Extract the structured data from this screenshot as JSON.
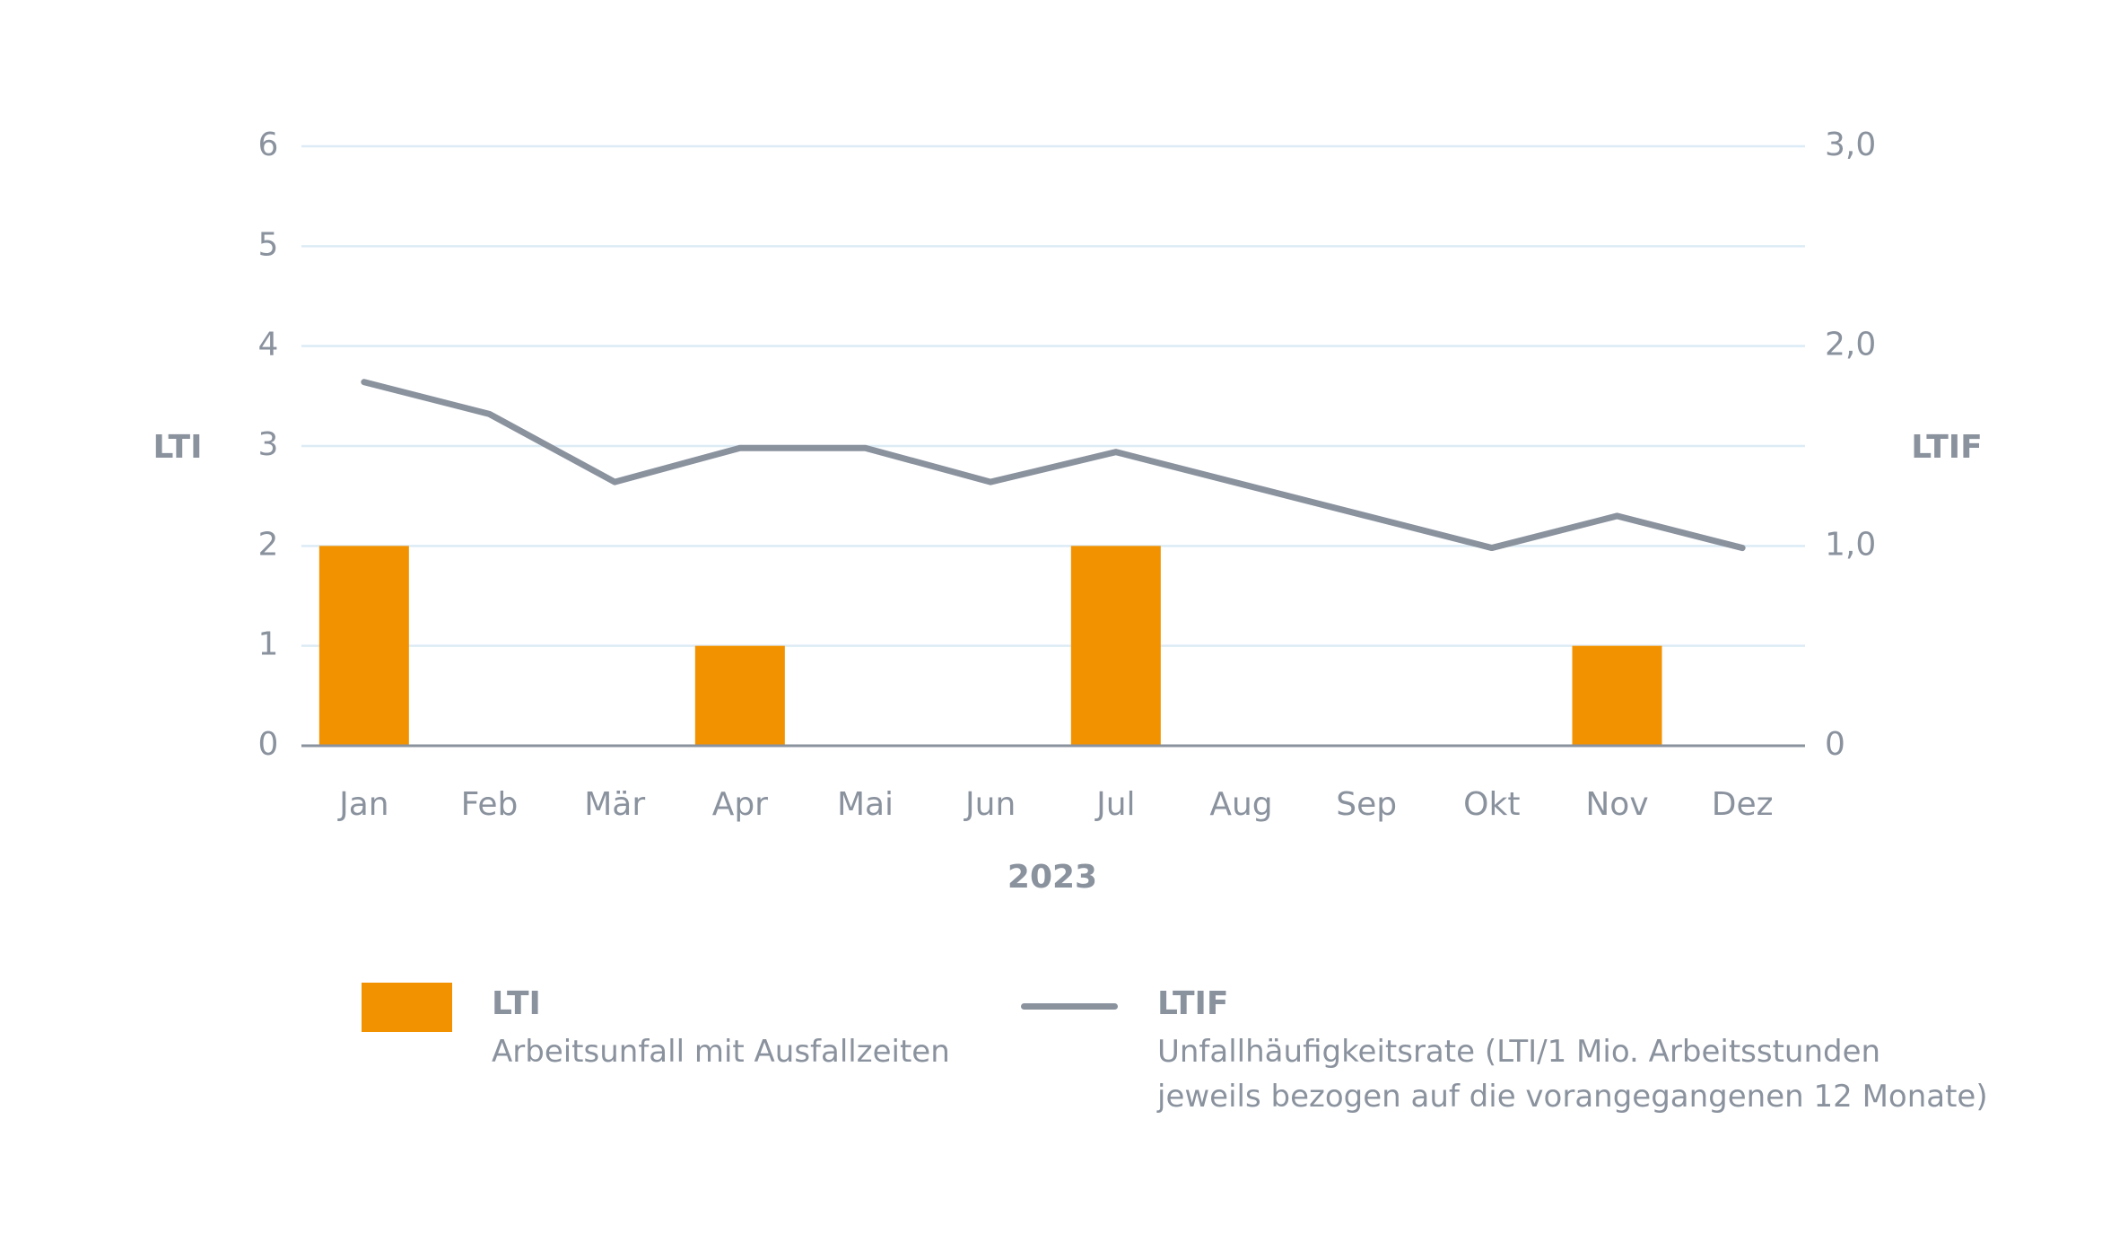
{
  "chart_data": {
    "type": "bar",
    "categories": [
      "Jan",
      "Feb",
      "Mär",
      "Apr",
      "Mai",
      "Jun",
      "Jul",
      "Aug",
      "Sep",
      "Okt",
      "Nov",
      "Dez"
    ],
    "series": [
      {
        "name": "LTI",
        "type": "bar",
        "axis": "left",
        "color": "#f39200",
        "values": [
          2,
          0,
          0,
          1,
          0,
          0,
          2,
          0,
          0,
          0,
          1,
          0
        ]
      },
      {
        "name": "LTIF",
        "type": "line",
        "axis": "right",
        "color": "#8a929e",
        "values": [
          1.82,
          1.66,
          1.32,
          1.49,
          1.49,
          1.32,
          1.47,
          1.31,
          1.15,
          0.99,
          1.15,
          0.99
        ]
      }
    ],
    "xlabel": "2023",
    "ylabel_left": "LTI",
    "ylabel_right": "LTIF",
    "ylim_left": [
      0,
      6
    ],
    "ylim_right": [
      0,
      3.0
    ],
    "yticks_left": [
      "0",
      "1",
      "2",
      "3",
      "4",
      "5",
      "6"
    ],
    "yticks_right": [
      "0",
      "1,0",
      "2,0",
      "3,0"
    ],
    "grid": true,
    "legend_position": "bottom"
  },
  "legend": {
    "lti": {
      "title": "LTI",
      "desc": "Arbeitsunfall mit Ausfallzeiten"
    },
    "ltif": {
      "title": "LTIF",
      "desc_line1": "Unfallhäufigkeitsrate (LTI/1 Mio. Arbeitsstunden",
      "desc_line2": "jeweils bezogen auf die vorangegangenen 12 Monate)"
    }
  },
  "colors": {
    "bar": "#f39200",
    "line": "#8a929e",
    "grid": "#dcebf5",
    "text": "#8a929e"
  }
}
